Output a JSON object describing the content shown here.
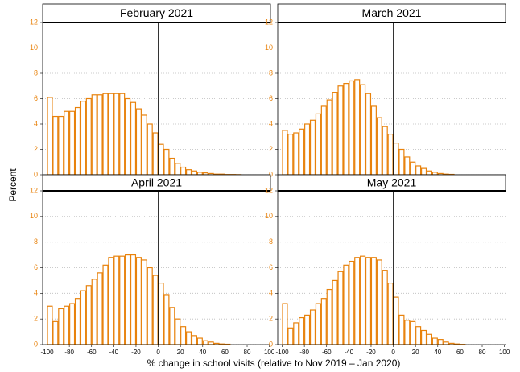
{
  "xlabel": "% change in school visits (relative to Nov 2019 – Jan 2020)",
  "ylabel": "Percent",
  "chart_data": [
    {
      "type": "histogram",
      "title": "February 2021",
      "color": "#e8820c",
      "grid": true,
      "vline": 0,
      "bins": [
        -100,
        -95,
        -90,
        -85,
        -80,
        -75,
        -70,
        -65,
        -60,
        -55,
        -50,
        -45,
        -40,
        -35,
        -30,
        -25,
        -20,
        -15,
        -10,
        -5,
        0,
        5,
        10,
        15,
        20,
        25,
        30,
        35,
        40,
        45,
        50,
        55,
        60,
        65,
        70,
        75,
        80,
        85,
        90,
        95,
        100
      ],
      "values": [
        6.1,
        4.6,
        4.6,
        5.0,
        5.0,
        5.3,
        5.8,
        6.0,
        6.3,
        6.3,
        6.4,
        6.4,
        6.4,
        6.4,
        6.0,
        5.7,
        5.2,
        4.7,
        4.0,
        3.3,
        2.4,
        2.0,
        1.3,
        0.9,
        0.6,
        0.4,
        0.3,
        0.2,
        0.15,
        0.1,
        0.05,
        0.05,
        0.02,
        0.02,
        0.01,
        0,
        0,
        0,
        0,
        0
      ],
      "xlim": [
        -104,
        101
      ],
      "ylim": [
        0,
        12
      ],
      "xticks": [
        -100,
        -80,
        -60,
        -40,
        -20,
        0,
        20,
        40,
        60,
        80,
        100
      ],
      "yticks": [
        0,
        2,
        4,
        6,
        8,
        10,
        12
      ]
    },
    {
      "type": "histogram",
      "title": "March 2021",
      "color": "#e8820c",
      "grid": true,
      "vline": 0,
      "bins": [
        -100,
        -95,
        -90,
        -85,
        -80,
        -75,
        -70,
        -65,
        -60,
        -55,
        -50,
        -45,
        -40,
        -35,
        -30,
        -25,
        -20,
        -15,
        -10,
        -5,
        0,
        5,
        10,
        15,
        20,
        25,
        30,
        35,
        40,
        45,
        50,
        55,
        60,
        65,
        70,
        75,
        80,
        85,
        90,
        95,
        100
      ],
      "values": [
        3.5,
        3.2,
        3.3,
        3.6,
        4.0,
        4.3,
        4.8,
        5.4,
        5.9,
        6.5,
        7.0,
        7.2,
        7.4,
        7.5,
        7.1,
        6.4,
        5.4,
        4.5,
        3.8,
        3.2,
        2.5,
        2.0,
        1.4,
        1.0,
        0.7,
        0.5,
        0.3,
        0.2,
        0.1,
        0.05,
        0.03,
        0,
        0,
        0,
        0,
        0,
        0,
        0,
        0,
        0
      ],
      "xlim": [
        -104,
        101
      ],
      "ylim": [
        0,
        12
      ],
      "xticks": [
        -100,
        -80,
        -60,
        -40,
        -20,
        0,
        20,
        40,
        60,
        80,
        100
      ],
      "yticks": [
        0,
        2,
        4,
        6,
        8,
        10,
        12
      ]
    },
    {
      "type": "histogram",
      "title": "April 2021",
      "color": "#e8820c",
      "grid": true,
      "vline": 0,
      "bins": [
        -100,
        -95,
        -90,
        -85,
        -80,
        -75,
        -70,
        -65,
        -60,
        -55,
        -50,
        -45,
        -40,
        -35,
        -30,
        -25,
        -20,
        -15,
        -10,
        -5,
        0,
        5,
        10,
        15,
        20,
        25,
        30,
        35,
        40,
        45,
        50,
        55,
        60,
        65,
        70,
        75,
        80,
        85,
        90,
        95,
        100
      ],
      "values": [
        3.0,
        1.8,
        2.8,
        3.0,
        3.2,
        3.6,
        4.2,
        4.6,
        5.1,
        5.6,
        6.2,
        6.8,
        6.9,
        6.9,
        7.0,
        7.0,
        6.8,
        6.6,
        6.0,
        5.4,
        4.8,
        3.9,
        2.9,
        2.0,
        1.4,
        1.0,
        0.7,
        0.5,
        0.3,
        0.2,
        0.1,
        0.05,
        0.03,
        0,
        0,
        0,
        0,
        0,
        0,
        0
      ],
      "xlim": [
        -104,
        101
      ],
      "ylim": [
        0,
        12
      ],
      "xticks": [
        -100,
        -80,
        -60,
        -40,
        -20,
        0,
        20,
        40,
        60,
        80,
        100
      ],
      "yticks": [
        0,
        2,
        4,
        6,
        8,
        10,
        12
      ]
    },
    {
      "type": "histogram",
      "title": "May 2021",
      "color": "#e8820c",
      "grid": true,
      "vline": 0,
      "bins": [
        -100,
        -95,
        -90,
        -85,
        -80,
        -75,
        -70,
        -65,
        -60,
        -55,
        -50,
        -45,
        -40,
        -35,
        -30,
        -25,
        -20,
        -15,
        -10,
        -5,
        0,
        5,
        10,
        15,
        20,
        25,
        30,
        35,
        40,
        45,
        50,
        55,
        60,
        65,
        70,
        75,
        80,
        85,
        90,
        95,
        100
      ],
      "values": [
        3.2,
        1.3,
        1.7,
        2.1,
        2.3,
        2.7,
        3.2,
        3.6,
        4.3,
        5.0,
        5.7,
        6.2,
        6.5,
        6.8,
        6.9,
        6.8,
        6.8,
        6.6,
        5.8,
        4.8,
        3.7,
        2.3,
        1.9,
        1.8,
        1.4,
        1.1,
        0.8,
        0.5,
        0.4,
        0.2,
        0.1,
        0.05,
        0.02,
        0,
        0,
        0,
        0,
        0,
        0,
        0
      ],
      "xlim": [
        -104,
        101
      ],
      "ylim": [
        0,
        12
      ],
      "xticks": [
        -100,
        -80,
        -60,
        -40,
        -20,
        0,
        20,
        40,
        60,
        80,
        100
      ],
      "yticks": [
        0,
        2,
        4,
        6,
        8,
        10,
        12
      ]
    }
  ]
}
